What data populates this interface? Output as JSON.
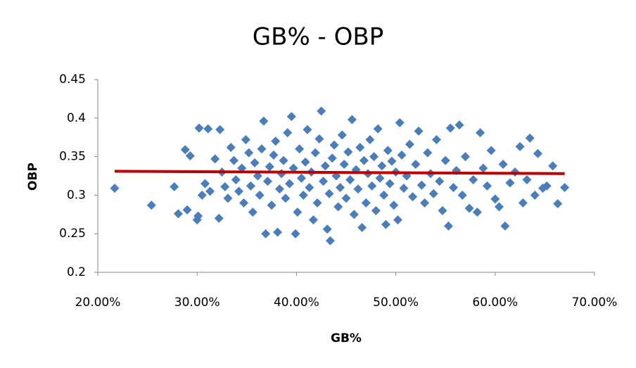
{
  "chart_data": {
    "type": "scatter",
    "title": "GB% - OBP",
    "x_label": "GB%",
    "y_label": "OBP",
    "color": "#4a7ebb",
    "xlim": [
      0.2,
      0.7
    ],
    "ylim": [
      0.2,
      0.45
    ],
    "xticks": [
      {
        "value": 0.2,
        "label": "20.00%"
      },
      {
        "value": 0.3,
        "label": "30.00%"
      },
      {
        "value": 0.4,
        "label": "40.00%"
      },
      {
        "value": 0.5,
        "label": "50.00%"
      },
      {
        "value": 0.6,
        "label": "60.00%"
      },
      {
        "value": 0.7,
        "label": "70.00%"
      }
    ],
    "yticks": [
      0.2,
      0.25,
      0.3,
      0.35,
      0.4,
      0.45
    ],
    "grid": false,
    "x": [
      0.217,
      0.254,
      0.277,
      0.281,
      0.29,
      0.288,
      0.293,
      0.302,
      0.311,
      0.3,
      0.301,
      0.305,
      0.308,
      0.313,
      0.318,
      0.322,
      0.323,
      0.325,
      0.328,
      0.331,
      0.334,
      0.337,
      0.339,
      0.342,
      0.345,
      0.347,
      0.349,
      0.352,
      0.354,
      0.356,
      0.358,
      0.361,
      0.363,
      0.365,
      0.367,
      0.369,
      0.371,
      0.373,
      0.375,
      0.377,
      0.379,
      0.381,
      0.383,
      0.385,
      0.387,
      0.389,
      0.391,
      0.393,
      0.395,
      0.397,
      0.399,
      0.401,
      0.403,
      0.405,
      0.407,
      0.409,
      0.411,
      0.413,
      0.415,
      0.417,
      0.419,
      0.421,
      0.423,
      0.425,
      0.427,
      0.429,
      0.431,
      0.433,
      0.434,
      0.436,
      0.438,
      0.44,
      0.442,
      0.444,
      0.446,
      0.448,
      0.45,
      0.452,
      0.454,
      0.456,
      0.458,
      0.46,
      0.462,
      0.464,
      0.466,
      0.468,
      0.47,
      0.472,
      0.474,
      0.476,
      0.478,
      0.48,
      0.482,
      0.484,
      0.486,
      0.488,
      0.49,
      0.492,
      0.494,
      0.496,
      0.498,
      0.5,
      0.502,
      0.504,
      0.506,
      0.508,
      0.511,
      0.514,
      0.517,
      0.52,
      0.523,
      0.526,
      0.529,
      0.532,
      0.535,
      0.538,
      0.541,
      0.544,
      0.547,
      0.55,
      0.553,
      0.555,
      0.558,
      0.561,
      0.564,
      0.567,
      0.57,
      0.574,
      0.578,
      0.582,
      0.585,
      0.588,
      0.592,
      0.596,
      0.6,
      0.604,
      0.608,
      0.61,
      0.615,
      0.62,
      0.625,
      0.628,
      0.632,
      0.635,
      0.64,
      0.643,
      0.648,
      0.652,
      0.658,
      0.663,
      0.67
    ],
    "y": [
      0.309,
      0.287,
      0.311,
      0.276,
      0.281,
      0.359,
      0.351,
      0.387,
      0.386,
      0.268,
      0.273,
      0.3,
      0.315,
      0.305,
      0.347,
      0.27,
      0.385,
      0.33,
      0.311,
      0.296,
      0.362,
      0.345,
      0.32,
      0.305,
      0.335,
      0.29,
      0.372,
      0.355,
      0.312,
      0.278,
      0.342,
      0.325,
      0.3,
      0.36,
      0.396,
      0.25,
      0.318,
      0.337,
      0.287,
      0.352,
      0.37,
      0.252,
      0.308,
      0.328,
      0.345,
      0.296,
      0.381,
      0.315,
      0.402,
      0.335,
      0.25,
      0.278,
      0.36,
      0.322,
      0.3,
      0.343,
      0.385,
      0.31,
      0.33,
      0.268,
      0.355,
      0.29,
      0.373,
      0.409,
      0.318,
      0.338,
      0.256,
      0.302,
      0.241,
      0.348,
      0.365,
      0.325,
      0.285,
      0.31,
      0.378,
      0.34,
      0.296,
      0.356,
      0.32,
      0.398,
      0.275,
      0.333,
      0.308,
      0.362,
      0.258,
      0.345,
      0.29,
      0.328,
      0.372,
      0.312,
      0.35,
      0.28,
      0.386,
      0.322,
      0.338,
      0.3,
      0.262,
      0.358,
      0.315,
      0.344,
      0.287,
      0.33,
      0.268,
      0.394,
      0.352,
      0.309,
      0.325,
      0.366,
      0.298,
      0.34,
      0.383,
      0.313,
      0.29,
      0.355,
      0.328,
      0.302,
      0.372,
      0.318,
      0.28,
      0.345,
      0.26,
      0.387,
      0.31,
      0.332,
      0.391,
      0.3,
      0.35,
      0.283,
      0.32,
      0.278,
      0.381,
      0.335,
      0.312,
      0.358,
      0.295,
      0.285,
      0.34,
      0.26,
      0.316,
      0.33,
      0.363,
      0.29,
      0.32,
      0.374,
      0.3,
      0.354,
      0.309,
      0.312,
      0.338,
      0.289,
      0.31
    ],
    "trendline": {
      "x": [
        0.217,
        0.67
      ],
      "y": [
        0.331,
        0.328
      ],
      "color": "#c00000"
    }
  }
}
